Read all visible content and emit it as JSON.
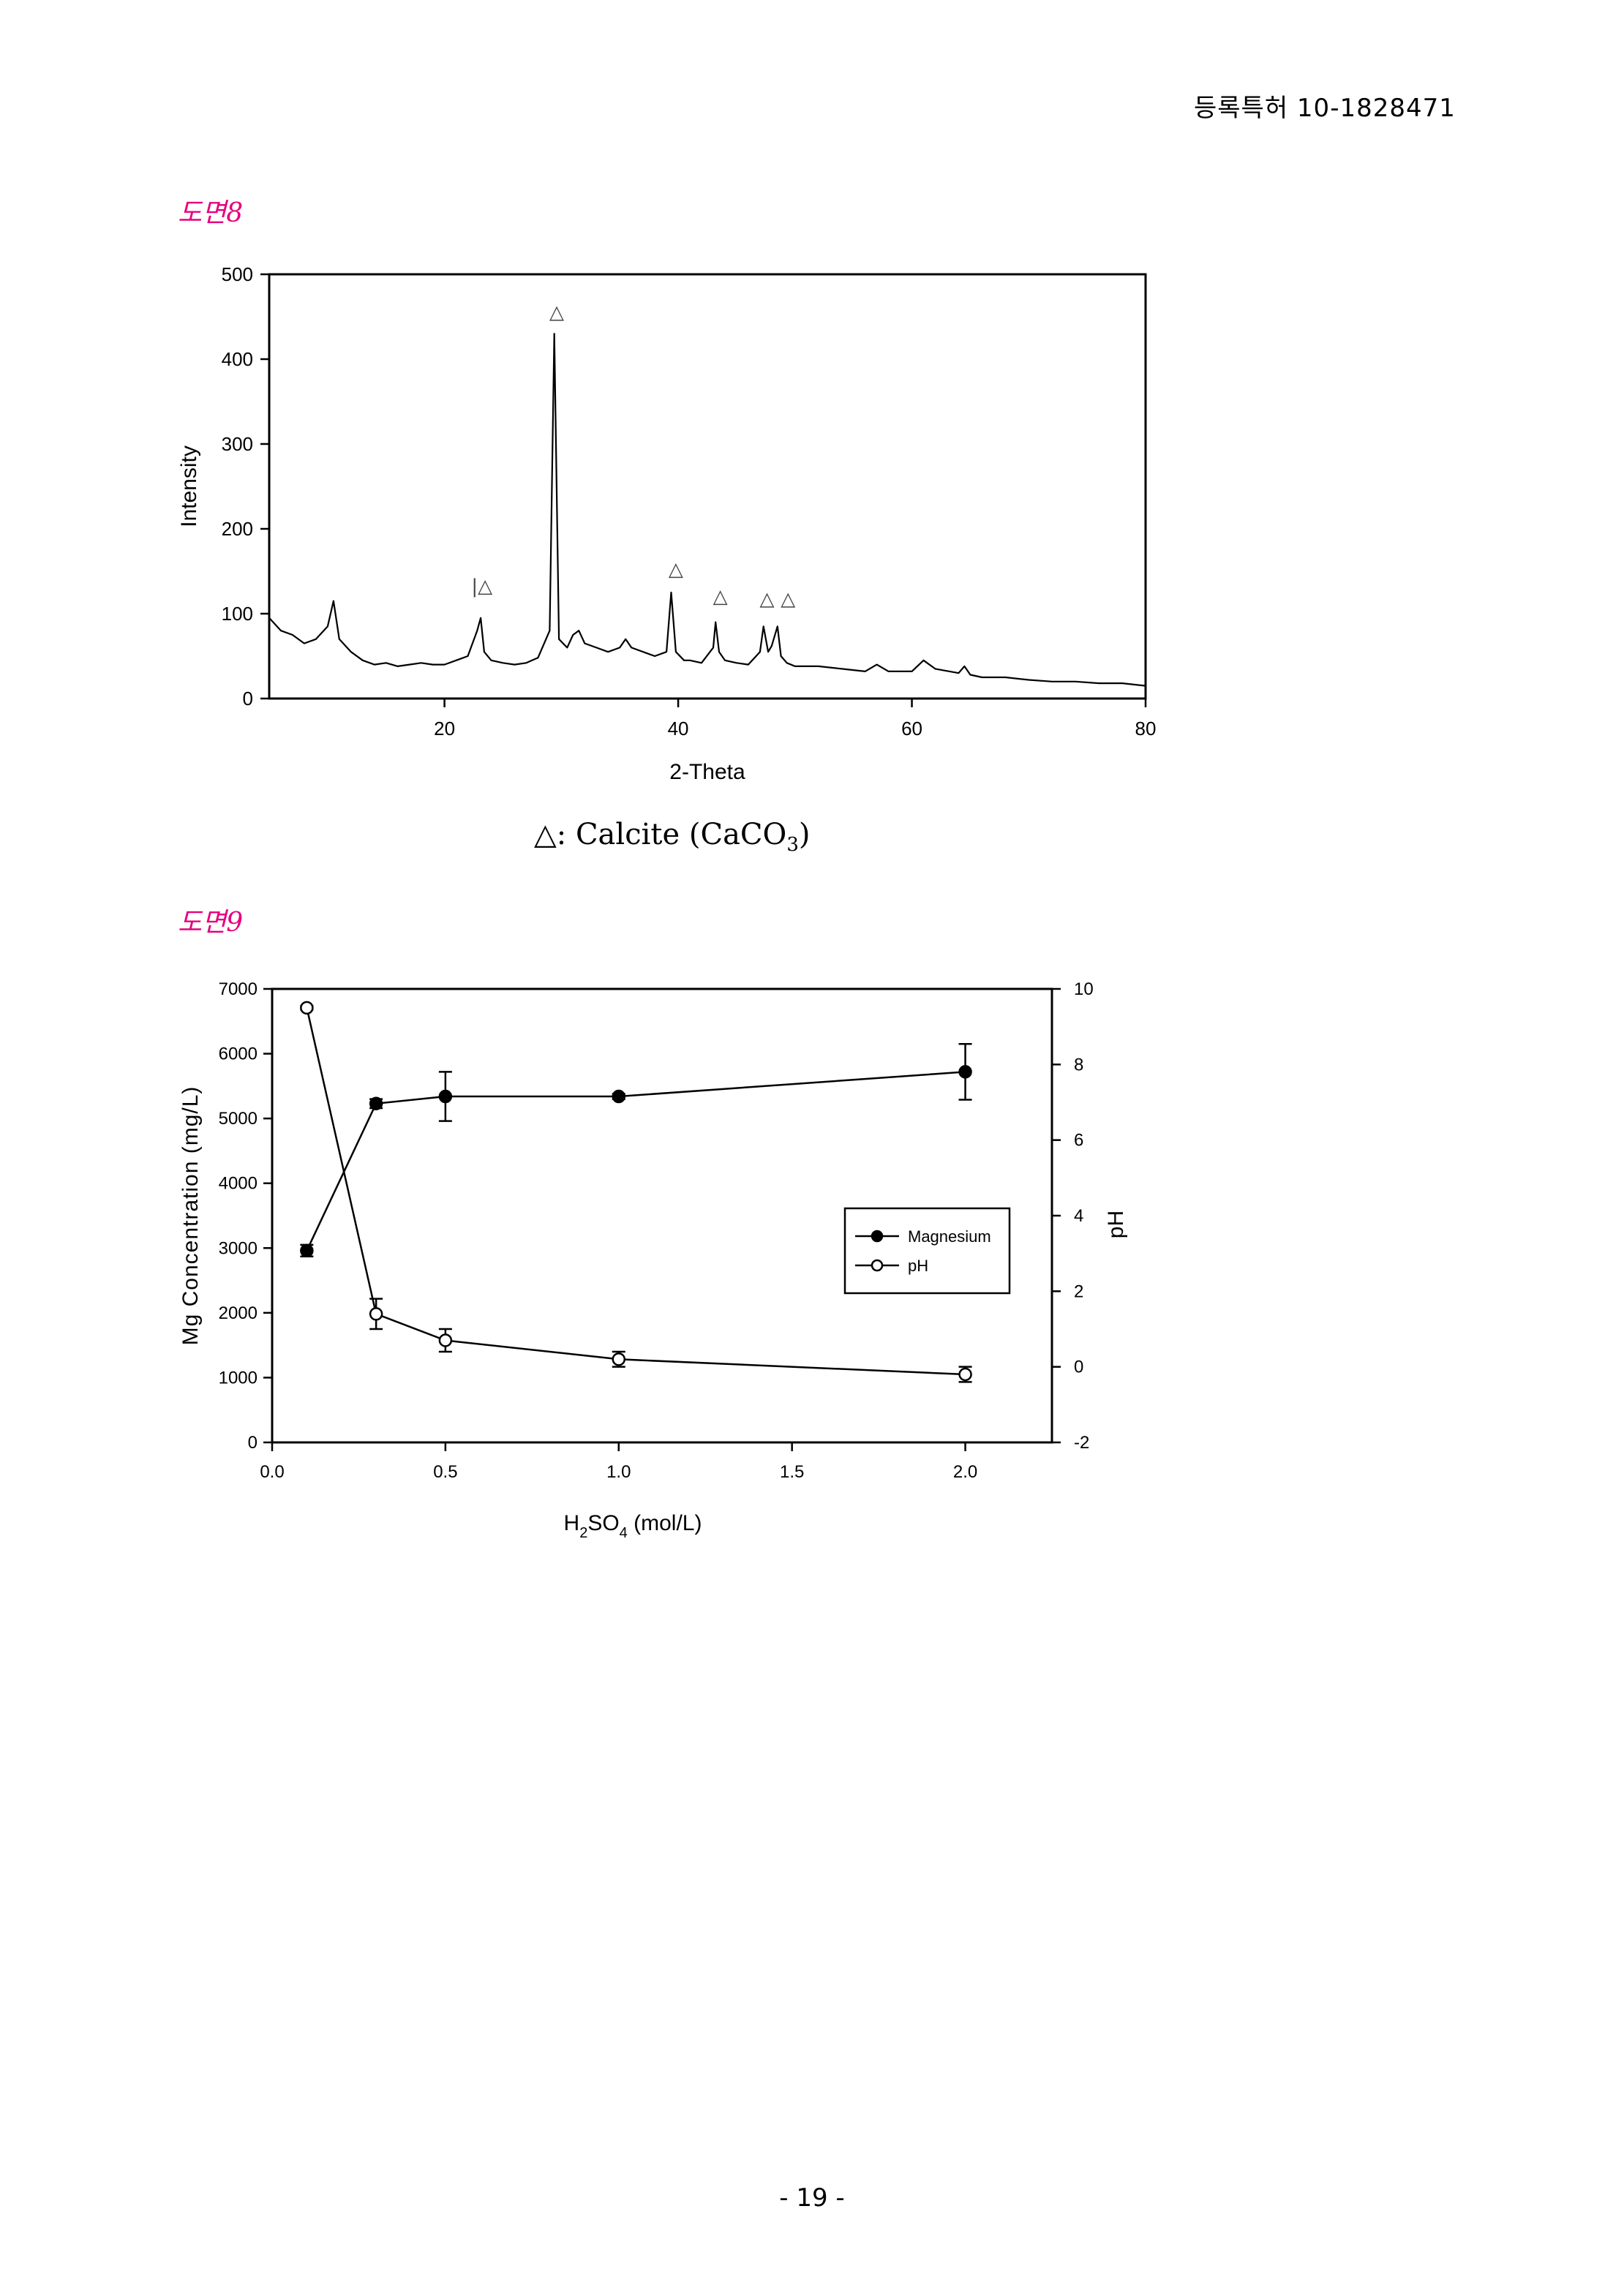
{
  "header": {
    "patent_number": "등록특허 10-1828471"
  },
  "figure8": {
    "label": "도면8",
    "legend_text": "△: Calcite (CaCO",
    "legend_sub": "3",
    "legend_close": ")",
    "chart_data": {
      "type": "line",
      "title": "",
      "xlabel": "2-Theta",
      "ylabel": "Intensity",
      "xlim": [
        5,
        80
      ],
      "ylim": [
        0,
        500
      ],
      "xticks": [
        20,
        40,
        60,
        80
      ],
      "yticks": [
        0,
        100,
        200,
        300,
        400,
        500
      ],
      "grid": false,
      "x": [
        5,
        6,
        7,
        8,
        9,
        10,
        10.5,
        11,
        12,
        13,
        14,
        15,
        16,
        17,
        18,
        19,
        20,
        21,
        22,
        22.8,
        23.1,
        23.4,
        24,
        25,
        26,
        27,
        28,
        29,
        29.4,
        29.8,
        30.5,
        31,
        31.5,
        32,
        33,
        34,
        35,
        35.5,
        36,
        37,
        38,
        39,
        39.4,
        39.8,
        40.5,
        41,
        42,
        43,
        43.2,
        43.5,
        44,
        45,
        46,
        47,
        47.3,
        47.7,
        48,
        48.5,
        48.8,
        49.3,
        50,
        52,
        54,
        56,
        57,
        58,
        60,
        61,
        62,
        64,
        64.5,
        65,
        66,
        68,
        70,
        72,
        74,
        76,
        78,
        80
      ],
      "y": [
        95,
        80,
        75,
        65,
        70,
        85,
        115,
        70,
        55,
        45,
        40,
        42,
        38,
        40,
        42,
        40,
        40,
        45,
        50,
        80,
        95,
        55,
        45,
        42,
        40,
        42,
        48,
        80,
        430,
        70,
        60,
        75,
        80,
        65,
        60,
        55,
        60,
        70,
        60,
        55,
        50,
        55,
        125,
        55,
        45,
        45,
        42,
        60,
        90,
        55,
        45,
        42,
        40,
        55,
        85,
        55,
        62,
        85,
        50,
        42,
        38,
        38,
        35,
        32,
        40,
        32,
        32,
        45,
        35,
        30,
        38,
        28,
        25,
        25,
        22,
        20,
        20,
        18,
        18,
        15
      ],
      "annotations": [
        {
          "text": "△",
          "x": 29.6,
          "y": 448
        },
        {
          "text": "|△",
          "x": 23.2,
          "y": 125
        },
        {
          "text": "△",
          "x": 39.8,
          "y": 145
        },
        {
          "text": "△",
          "x": 43.6,
          "y": 113
        },
        {
          "text": "△",
          "x": 47.6,
          "y": 110
        },
        {
          "text": "△",
          "x": 49.4,
          "y": 110
        }
      ]
    }
  },
  "figure9": {
    "label": "도면9",
    "chart_data": {
      "type": "line",
      "title": "",
      "xlabel": "H2SO4 (mol/L)",
      "xlabel_parts": {
        "a": "H",
        "sub1": "2",
        "b": "SO",
        "sub2": "4",
        "c": " (mol/L)"
      },
      "ylabel": "Mg Concentration (mg/L)",
      "y2label": "pH",
      "xlim": [
        0,
        2.25
      ],
      "ylim": [
        0,
        7000
      ],
      "y2lim": [
        -2,
        10
      ],
      "xticks": [
        "0.0",
        "0.5",
        "1.0",
        "1.5",
        "2.0"
      ],
      "yticks": [
        0,
        1000,
        2000,
        3000,
        4000,
        5000,
        6000,
        7000
      ],
      "y2ticks": [
        -2,
        0,
        2,
        4,
        6,
        8,
        10
      ],
      "grid": false,
      "legend_position": "center-right",
      "x": [
        0.1,
        0.3,
        0.5,
        1.0,
        2.0
      ],
      "series": [
        {
          "name": "Magnesium",
          "axis": "left",
          "marker": "filled-circle",
          "values": [
            2960,
            5230,
            5340,
            5340,
            5720
          ],
          "errors": [
            90,
            70,
            380,
            40,
            430
          ]
        },
        {
          "name": "pH",
          "axis": "right",
          "marker": "open-circle",
          "values": [
            9.5,
            1.4,
            0.7,
            0.2,
            -0.2
          ],
          "errors": [
            0.05,
            0.4,
            0.3,
            0.2,
            0.2
          ]
        }
      ]
    }
  },
  "footer": {
    "page_number": "- 19 -"
  }
}
